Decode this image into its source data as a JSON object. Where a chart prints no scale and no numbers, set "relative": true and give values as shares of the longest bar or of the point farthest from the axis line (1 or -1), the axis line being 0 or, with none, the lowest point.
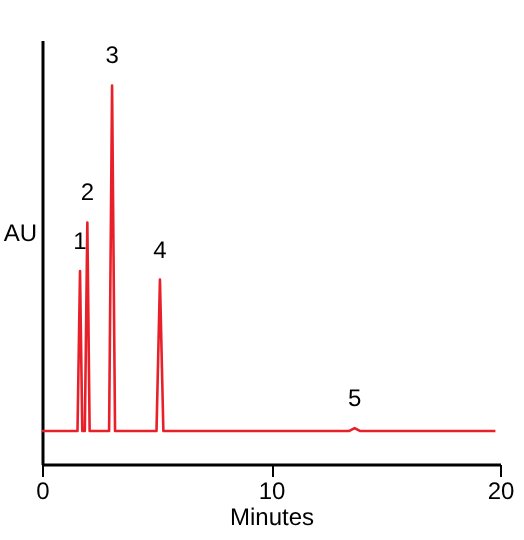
{
  "chart_data": {
    "type": "line",
    "relative": true,
    "xlabel": "Minutes",
    "ylabel": "AU",
    "x": [
      0,
      1.55,
      1.66,
      1.76,
      1.87,
      1.98,
      2.08,
      2.93,
      3.06,
      3.19,
      5.0,
      5.15,
      5.3,
      13.4,
      13.65,
      13.9,
      19.8
    ],
    "series": [
      {
        "color": "#e8202a",
        "values": [
          0.087,
          0.087,
          0.51,
          0.087,
          0.087,
          0.638,
          0.087,
          0.087,
          1,
          0.087,
          0.087,
          0.487,
          0.087,
          0.087,
          0.095,
          0.087,
          0.087
        ]
      }
    ],
    "xlim": [
      0,
      20
    ],
    "xticks": [
      0,
      10,
      20
    ],
    "tick_labels": "x",
    "grid": false,
    "marker": "none",
    "line_style": "solid",
    "annotations": [
      {
        "text": "1",
        "x": 1.66,
        "y": 0.51
      },
      {
        "text": "2",
        "x": 1.98,
        "y": 0.638
      },
      {
        "text": "3",
        "x": 3.06,
        "y": 1
      },
      {
        "text": "4",
        "x": 5.15,
        "y": 0.487
      },
      {
        "text": "5",
        "x": 13.65,
        "y": 0.095
      }
    ]
  }
}
